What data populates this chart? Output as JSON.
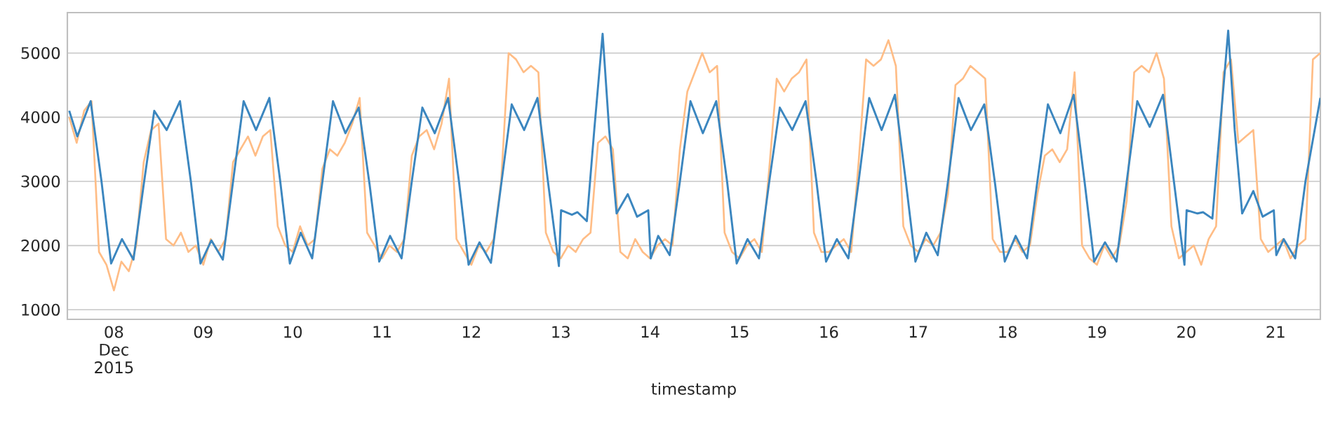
{
  "chart_data": {
    "type": "line",
    "xlabel": "timestamp",
    "xlim": [
      "2015-12-07T11:30",
      "2015-12-21T12:00"
    ],
    "xticks": [
      {
        "value": "2015-12-08",
        "label": "08 Dec 2015"
      },
      {
        "value": "2015-12-09",
        "label": "09"
      },
      {
        "value": "2015-12-10",
        "label": "10"
      },
      {
        "value": "2015-12-11",
        "label": "11"
      },
      {
        "value": "2015-12-12",
        "label": "12"
      },
      {
        "value": "2015-12-13",
        "label": "13"
      },
      {
        "value": "2015-12-14",
        "label": "14"
      },
      {
        "value": "2015-12-15",
        "label": "15"
      },
      {
        "value": "2015-12-16",
        "label": "16"
      },
      {
        "value": "2015-12-17",
        "label": "17"
      },
      {
        "value": "2015-12-18",
        "label": "18"
      },
      {
        "value": "2015-12-19",
        "label": "19"
      },
      {
        "value": "2015-12-20",
        "label": "20"
      },
      {
        "value": "2015-12-21",
        "label": "21"
      }
    ],
    "ylim": [
      850,
      5630
    ],
    "yticks": [
      1000,
      2000,
      3000,
      4000,
      5000
    ],
    "grid": "y",
    "marker": "none",
    "line_style": "solid",
    "series": [
      {
        "color": "#3b86bf",
        "x": [
          "2015-12-07T12:00",
          "2015-12-07T14:10",
          "2015-12-07T17:45",
          "2015-12-07T20:40",
          "2015-12-07T23:15",
          "2015-12-08T02:10",
          "2015-12-08T05:15",
          "2015-12-08T08:00",
          "2015-12-08T10:50",
          "2015-12-08T14:10",
          "2015-12-08T17:45",
          "2015-12-08T20:40",
          "2015-12-08T23:15",
          "2015-12-09T02:10",
          "2015-12-09T05:15",
          "2015-12-09T08:00",
          "2015-12-09T10:50",
          "2015-12-09T14:10",
          "2015-12-09T17:45",
          "2015-12-09T20:40",
          "2015-12-09T23:15",
          "2015-12-10T02:10",
          "2015-12-10T05:15",
          "2015-12-10T08:00",
          "2015-12-10T10:50",
          "2015-12-10T14:10",
          "2015-12-10T17:45",
          "2015-12-10T20:40",
          "2015-12-10T23:15",
          "2015-12-11T02:10",
          "2015-12-11T05:15",
          "2015-12-11T08:00",
          "2015-12-11T10:50",
          "2015-12-11T14:10",
          "2015-12-11T17:45",
          "2015-12-11T20:40",
          "2015-12-11T23:15",
          "2015-12-12T02:10",
          "2015-12-12T05:15",
          "2015-12-12T08:00",
          "2015-12-12T10:50",
          "2015-12-12T14:10",
          "2015-12-12T17:45",
          "2015-12-12T20:40",
          "2015-12-12T23:30",
          "2015-12-13T00:05",
          "2015-12-13T03:00",
          "2015-12-13T04:30",
          "2015-12-13T07:00",
          "2015-12-13T09:00",
          "2015-12-13T11:15",
          "2015-12-13T13:00",
          "2015-12-13T15:00",
          "2015-12-13T18:00",
          "2015-12-13T20:30",
          "2015-12-13T23:30",
          "2015-12-14T00:10",
          "2015-12-14T02:10",
          "2015-12-14T05:15",
          "2015-12-14T08:00",
          "2015-12-14T10:50",
          "2015-12-14T14:10",
          "2015-12-14T17:45",
          "2015-12-14T20:40",
          "2015-12-14T23:15",
          "2015-12-15T02:10",
          "2015-12-15T05:15",
          "2015-12-15T08:00",
          "2015-12-15T10:50",
          "2015-12-15T14:10",
          "2015-12-15T17:45",
          "2015-12-15T20:40",
          "2015-12-15T23:15",
          "2015-12-16T02:10",
          "2015-12-16T05:15",
          "2015-12-16T08:00",
          "2015-12-16T10:50",
          "2015-12-16T14:10",
          "2015-12-16T17:45",
          "2015-12-16T20:40",
          "2015-12-16T23:15",
          "2015-12-17T02:10",
          "2015-12-17T05:15",
          "2015-12-17T08:00",
          "2015-12-17T10:50",
          "2015-12-17T14:10",
          "2015-12-17T17:45",
          "2015-12-17T20:40",
          "2015-12-17T23:15",
          "2015-12-18T02:10",
          "2015-12-18T05:15",
          "2015-12-18T08:00",
          "2015-12-18T10:50",
          "2015-12-18T14:10",
          "2015-12-18T17:45",
          "2015-12-18T20:40",
          "2015-12-18T23:15",
          "2015-12-19T02:10",
          "2015-12-19T05:15",
          "2015-12-19T08:00",
          "2015-12-19T10:50",
          "2015-12-19T14:10",
          "2015-12-19T17:45",
          "2015-12-19T20:40",
          "2015-12-19T23:30",
          "2015-12-20T00:05",
          "2015-12-20T03:00",
          "2015-12-20T04:30",
          "2015-12-20T07:00",
          "2015-12-20T09:00",
          "2015-12-20T11:15",
          "2015-12-20T13:00",
          "2015-12-20T15:00",
          "2015-12-20T18:00",
          "2015-12-20T20:30",
          "2015-12-20T23:30",
          "2015-12-21T00:10",
          "2015-12-21T02:10",
          "2015-12-21T05:15",
          "2015-12-21T08:00",
          "2015-12-21T12:00"
        ],
        "values": [
          4100,
          3700,
          4250,
          3000,
          1720,
          2100,
          1780,
          2950,
          4100,
          3800,
          4250,
          3000,
          1720,
          2080,
          1780,
          3000,
          4250,
          3800,
          4300,
          3000,
          1720,
          2200,
          1800,
          3000,
          4250,
          3750,
          4150,
          2950,
          1750,
          2150,
          1800,
          3000,
          4150,
          3750,
          4300,
          3000,
          1700,
          2050,
          1730,
          2950,
          4200,
          3800,
          4300,
          2950,
          1680,
          2550,
          2480,
          2520,
          2380,
          3800,
          5300,
          3800,
          2500,
          2800,
          2450,
          2550,
          1800,
          2150,
          1850,
          3000,
          4250,
          3750,
          4250,
          3000,
          1720,
          2100,
          1800,
          3000,
          4150,
          3800,
          4250,
          3000,
          1750,
          2100,
          1800,
          3000,
          4300,
          3800,
          4350,
          3000,
          1750,
          2200,
          1850,
          3000,
          4300,
          3800,
          4200,
          2950,
          1750,
          2150,
          1800,
          3000,
          4200,
          3750,
          4350,
          3000,
          1750,
          2050,
          1750,
          3000,
          4250,
          3850,
          4350,
          3000,
          1700,
          2550,
          2500,
          2520,
          2420,
          3800,
          5350,
          3800,
          2500,
          2850,
          2450,
          2550,
          1850,
          2100,
          1800,
          3000,
          4300
        ]
      },
      {
        "color": "#ffbd86",
        "x": [
          "2015-12-07T12:00",
          "2015-12-07T14:00",
          "2015-12-07T16:00",
          "2015-12-07T18:00",
          "2015-12-07T20:00",
          "2015-12-07T22:00",
          "2015-12-08T00:00",
          "2015-12-08T02:00",
          "2015-12-08T04:00",
          "2015-12-08T06:00",
          "2015-12-08T08:00",
          "2015-12-08T10:00",
          "2015-12-08T12:00",
          "2015-12-08T14:00",
          "2015-12-08T16:00",
          "2015-12-08T18:00",
          "2015-12-08T20:00",
          "2015-12-08T22:00",
          "2015-12-09T00:00",
          "2015-12-09T02:00",
          "2015-12-09T04:00",
          "2015-12-09T06:00",
          "2015-12-09T08:00",
          "2015-12-09T10:00",
          "2015-12-09T12:00",
          "2015-12-09T14:00",
          "2015-12-09T16:00",
          "2015-12-09T18:00",
          "2015-12-09T20:00",
          "2015-12-09T22:00",
          "2015-12-10T00:00",
          "2015-12-10T02:00",
          "2015-12-10T04:00",
          "2015-12-10T06:00",
          "2015-12-10T08:00",
          "2015-12-10T10:00",
          "2015-12-10T12:00",
          "2015-12-10T14:00",
          "2015-12-10T16:00",
          "2015-12-10T18:00",
          "2015-12-10T20:00",
          "2015-12-10T22:00",
          "2015-12-11T00:00",
          "2015-12-11T02:00",
          "2015-12-11T04:00",
          "2015-12-11T06:00",
          "2015-12-11T08:00",
          "2015-12-11T10:00",
          "2015-12-11T12:00",
          "2015-12-11T14:00",
          "2015-12-11T16:00",
          "2015-12-11T18:00",
          "2015-12-11T20:00",
          "2015-12-11T22:00",
          "2015-12-12T00:00",
          "2015-12-12T02:00",
          "2015-12-12T04:00",
          "2015-12-12T06:00",
          "2015-12-12T08:00",
          "2015-12-12T10:00",
          "2015-12-12T12:00",
          "2015-12-12T14:00",
          "2015-12-12T16:00",
          "2015-12-12T18:00",
          "2015-12-12T20:00",
          "2015-12-12T22:00",
          "2015-12-13T00:00",
          "2015-12-13T02:00",
          "2015-12-13T04:00",
          "2015-12-13T06:00",
          "2015-12-13T08:00",
          "2015-12-13T10:00",
          "2015-12-13T12:00",
          "2015-12-13T14:00",
          "2015-12-13T16:00",
          "2015-12-13T18:00",
          "2015-12-13T20:00",
          "2015-12-13T22:00",
          "2015-12-14T00:00",
          "2015-12-14T02:00",
          "2015-12-14T04:00",
          "2015-12-14T06:00",
          "2015-12-14T08:00",
          "2015-12-14T10:00",
          "2015-12-14T12:00",
          "2015-12-14T14:00",
          "2015-12-14T16:00",
          "2015-12-14T18:00",
          "2015-12-14T20:00",
          "2015-12-14T22:00",
          "2015-12-15T00:00",
          "2015-12-15T02:00",
          "2015-12-15T04:00",
          "2015-12-15T06:00",
          "2015-12-15T08:00",
          "2015-12-15T10:00",
          "2015-12-15T12:00",
          "2015-12-15T14:00",
          "2015-12-15T16:00",
          "2015-12-15T18:00",
          "2015-12-15T20:00",
          "2015-12-15T22:00",
          "2015-12-16T00:00",
          "2015-12-16T02:00",
          "2015-12-16T04:00",
          "2015-12-16T06:00",
          "2015-12-16T08:00",
          "2015-12-16T10:00",
          "2015-12-16T12:00",
          "2015-12-16T14:00",
          "2015-12-16T16:00",
          "2015-12-16T18:00",
          "2015-12-16T20:00",
          "2015-12-16T22:00",
          "2015-12-17T00:00",
          "2015-12-17T02:00",
          "2015-12-17T04:00",
          "2015-12-17T06:00",
          "2015-12-17T08:00",
          "2015-12-17T10:00",
          "2015-12-17T12:00",
          "2015-12-17T14:00",
          "2015-12-17T16:00",
          "2015-12-17T18:00",
          "2015-12-17T20:00",
          "2015-12-17T22:00",
          "2015-12-18T00:00",
          "2015-12-18T02:00",
          "2015-12-18T04:00",
          "2015-12-18T06:00",
          "2015-12-18T08:00",
          "2015-12-18T10:00",
          "2015-12-18T12:00",
          "2015-12-18T14:00",
          "2015-12-18T16:00",
          "2015-12-18T18:00",
          "2015-12-18T20:00",
          "2015-12-18T22:00",
          "2015-12-19T00:00",
          "2015-12-19T02:00",
          "2015-12-19T04:00",
          "2015-12-19T06:00",
          "2015-12-19T08:00",
          "2015-12-19T10:00",
          "2015-12-19T12:00",
          "2015-12-19T14:00",
          "2015-12-19T16:00",
          "2015-12-19T18:00",
          "2015-12-19T20:00",
          "2015-12-19T22:00",
          "2015-12-20T00:00",
          "2015-12-20T02:00",
          "2015-12-20T04:00",
          "2015-12-20T06:00",
          "2015-12-20T08:00",
          "2015-12-20T10:00",
          "2015-12-20T12:00",
          "2015-12-20T14:00",
          "2015-12-20T16:00",
          "2015-12-20T18:00",
          "2015-12-20T20:00",
          "2015-12-20T22:00",
          "2015-12-21T00:00",
          "2015-12-21T02:00",
          "2015-12-21T04:00",
          "2015-12-21T06:00",
          "2015-12-21T08:00",
          "2015-12-21T10:00",
          "2015-12-21T12:00"
        ],
        "values": [
          4000,
          3600,
          4100,
          4250,
          1900,
          1700,
          1300,
          1750,
          1600,
          2000,
          3300,
          3800,
          3900,
          2100,
          2000,
          2200,
          1900,
          2000,
          1700,
          2100,
          1900,
          2100,
          3300,
          3500,
          3700,
          3400,
          3700,
          3800,
          2300,
          2000,
          1900,
          2300,
          2000,
          2100,
          3200,
          3500,
          3400,
          3600,
          3900,
          4300,
          2200,
          2000,
          1800,
          2000,
          1900,
          2100,
          3400,
          3700,
          3800,
          3500,
          3900,
          4600,
          2100,
          1900,
          1700,
          2000,
          1900,
          2100,
          3000,
          5000,
          4900,
          4700,
          4800,
          4700,
          2200,
          1900,
          1800,
          2000,
          1900,
          2100,
          2200,
          3600,
          3700,
          3500,
          1900,
          1800,
          2100,
          1900,
          1800,
          2000,
          2100,
          2000,
          3500,
          4400,
          4700,
          5000,
          4700,
          4800,
          2200,
          1900,
          1800,
          2000,
          2100,
          1900,
          3200,
          4600,
          4400,
          4600,
          4700,
          4900,
          2200,
          1900,
          1900,
          2000,
          2100,
          1900,
          3300,
          4900,
          4800,
          4900,
          5200,
          4800,
          2300,
          2000,
          1900,
          2100,
          2000,
          2200,
          2800,
          4500,
          4600,
          4800,
          4700,
          4600,
          2100,
          1900,
          1900,
          2100,
          1900,
          2000,
          2800,
          3400,
          3500,
          3300,
          3500,
          4700,
          2000,
          1800,
          1700,
          2000,
          1800,
          2000,
          2700,
          4700,
          4800,
          4700,
          5000,
          4600,
          2300,
          1800,
          1900,
          2000,
          1700,
          2100,
          2300,
          4700,
          4900,
          3600,
          3700,
          3800,
          2100,
          1900,
          2000,
          2100,
          1800,
          2000,
          2100,
          4900,
          5000
        ]
      }
    ]
  }
}
